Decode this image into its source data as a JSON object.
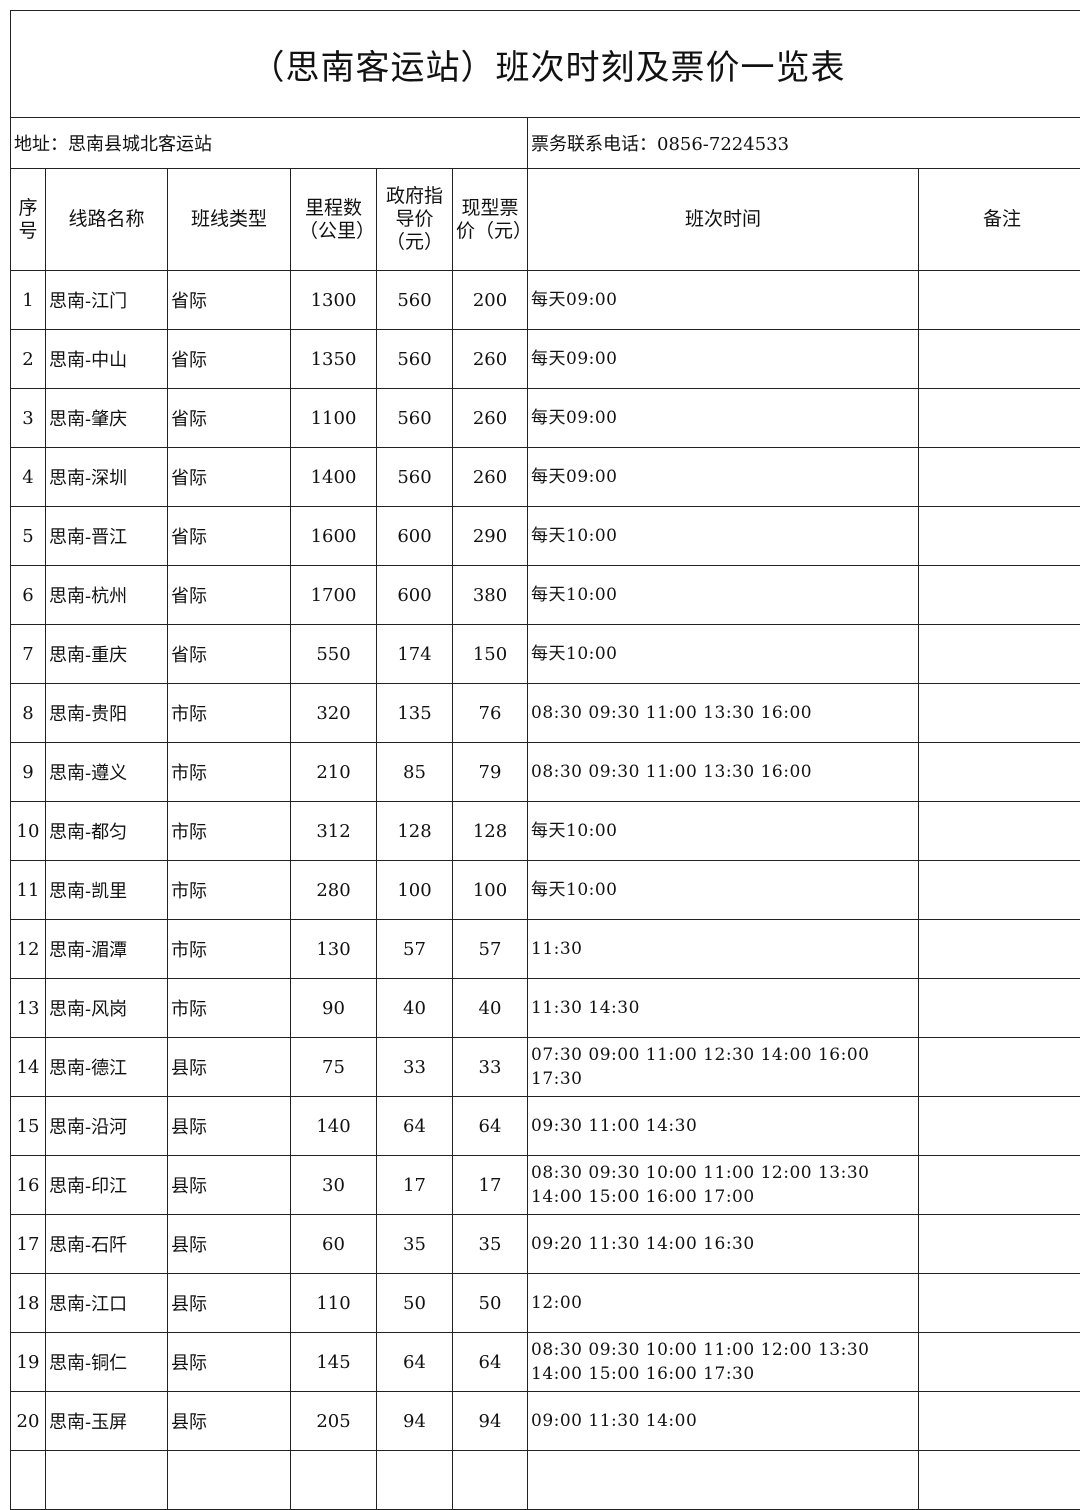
{
  "title": "（思南客运站）班次时刻及票价一览表",
  "address": "地址：思南县城北客运站",
  "phone": "票务联系电话：0856-7224533",
  "headers": [
    "序号",
    "线路名称",
    "班线类型",
    "里程数（公里）",
    "政府指导价（元）",
    "现型票价（元）",
    "班次时间",
    "备注"
  ],
  "rows": [
    [
      "1",
      "思南-江门",
      "省际",
      "1300",
      "560",
      "200",
      "每天09:00",
      ""
    ],
    [
      "2",
      "思南-中山",
      "省际",
      "1350",
      "560",
      "260",
      "每天09:00",
      ""
    ],
    [
      "3",
      "思南-肇庆",
      "省际",
      "1100",
      "560",
      "260",
      "每天09:00",
      ""
    ],
    [
      "4",
      "思南-深圳",
      "省际",
      "1400",
      "560",
      "260",
      "每天09:00",
      ""
    ],
    [
      "5",
      "思南-晋江",
      "省际",
      "1600",
      "600",
      "290",
      "每天10:00",
      ""
    ],
    [
      "6",
      "思南-杭州",
      "省际",
      "1700",
      "600",
      "380",
      "每天10:00",
      ""
    ],
    [
      "7",
      "思南-重庆",
      "省际",
      "550",
      "174",
      "150",
      "每天10:00",
      ""
    ],
    [
      "8",
      "思南-贵阳",
      "市际",
      "320",
      "135",
      "76",
      "08:30 09:30 11:00 13:30 16:00",
      ""
    ],
    [
      "9",
      "思南-遵义",
      "市际",
      "210",
      "85",
      "79",
      "08:30 09:30 11:00 13:30 16:00",
      ""
    ],
    [
      "10",
      "思南-都匀",
      "市际",
      "312",
      "128",
      "128",
      "每天10:00",
      ""
    ],
    [
      "11",
      "思南-凯里",
      "市际",
      "280",
      "100",
      "100",
      "每天10:00",
      ""
    ],
    [
      "12",
      "思南-湄潭",
      "市际",
      "130",
      "57",
      "57",
      "11:30",
      ""
    ],
    [
      "13",
      "思南-风岗",
      "市际",
      "90",
      "40",
      "40",
      "11:30 14:30",
      ""
    ],
    [
      "14",
      "思南-德江",
      "县际",
      "75",
      "33",
      "33",
      "07:30 09:00 11:00 12:30 14:00 16:00 17:30",
      ""
    ],
    [
      "15",
      "思南-沿河",
      "县际",
      "140",
      "64",
      "64",
      "09:30 11:00 14:30",
      ""
    ],
    [
      "16",
      "思南-印江",
      "县际",
      "30",
      "17",
      "17",
      "08:30 09:30 10:00 11:00 12:00 13:30 14:00 15:00 16:00 17:00",
      ""
    ],
    [
      "17",
      "思南-石阡",
      "县际",
      "60",
      "35",
      "35",
      "09:20 11:30 14:00 16:30",
      ""
    ],
    [
      "18",
      "思南-江口",
      "县际",
      "110",
      "50",
      "50",
      "12:00",
      ""
    ],
    [
      "19",
      "思南-铜仁",
      "县际",
      "145",
      "64",
      "64",
      "08:30 09:30 10:00 11:00 12:00 13:30 14:00 15:00 16:00 17:30",
      ""
    ],
    [
      "20",
      "思南-玉屏",
      "县际",
      "205",
      "94",
      "94",
      "09:00 11:30 14:00",
      ""
    ]
  ]
}
